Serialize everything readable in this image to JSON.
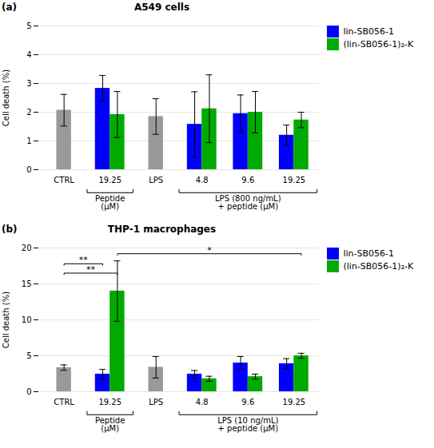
{
  "chart_data": [
    {
      "type": "bar",
      "panel_label": "(a)",
      "title": "A549 cells",
      "ylabel": "Cell death (%)",
      "ylim": [
        0,
        5
      ],
      "yticks": [
        0,
        1,
        2,
        3,
        4,
        5
      ],
      "grid": true,
      "legend": "right",
      "categories": [
        "CTRL",
        "19.25",
        "LPS",
        "4.8",
        "9.6",
        "19.25"
      ],
      "series": [
        {
          "color": "#999999",
          "values": [
            2.07,
            null,
            1.85,
            null,
            null,
            null
          ],
          "errors": [
            0.55,
            null,
            0.62,
            null,
            null,
            null
          ]
        },
        {
          "name": "lin-SB056-1",
          "color": "#0000FF",
          "values": [
            null,
            2.83,
            null,
            1.58,
            1.95,
            1.2
          ],
          "errors": [
            null,
            0.45,
            null,
            1.13,
            0.65,
            0.35
          ]
        },
        {
          "name": "(lin-SB056-1)₂-K",
          "color": "#00AA00",
          "values": [
            null,
            1.92,
            null,
            2.12,
            2.0,
            1.73
          ],
          "errors": [
            null,
            0.8,
            null,
            1.18,
            0.72,
            0.27
          ]
        }
      ],
      "brackets": [
        {
          "label": "Peptide\n(μM)",
          "categories": [
            1,
            1
          ]
        },
        {
          "label": "LPS (800 ng/mL)\n+ peptide (μM)",
          "categories": [
            3,
            5
          ]
        }
      ],
      "annotations": []
    },
    {
      "type": "bar",
      "panel_label": "(b)",
      "title": "THP-1 macrophages",
      "ylabel": "Cell death (%)",
      "ylim": [
        0,
        20
      ],
      "yticks": [
        0,
        5,
        10,
        15,
        20
      ],
      "grid": true,
      "legend": "right",
      "categories": [
        "CTRL",
        "19.25",
        "LPS",
        "4.8",
        "9.6",
        "19.25"
      ],
      "series": [
        {
          "color": "#999999",
          "values": [
            3.35,
            null,
            3.4,
            null,
            null,
            null
          ],
          "errors": [
            0.38,
            null,
            1.5,
            null,
            null,
            null
          ]
        },
        {
          "name": "lin-SB056-1",
          "color": "#0000FF",
          "values": [
            null,
            2.45,
            null,
            2.45,
            4.0,
            3.9
          ],
          "errors": [
            null,
            0.65,
            null,
            0.5,
            0.9,
            0.7
          ]
        },
        {
          "name": "(lin-SB056-1)₂-K",
          "color": "#00AA00",
          "values": [
            null,
            14.0,
            null,
            1.8,
            2.1,
            5.0
          ],
          "errors": [
            null,
            4.2,
            null,
            0.35,
            0.35,
            0.35
          ]
        }
      ],
      "brackets": [
        {
          "label": "Peptide\n(μM)",
          "categories": [
            1,
            1
          ]
        },
        {
          "label": "LPS (10 ng/mL)\n+ peptide (μM)",
          "categories": [
            3,
            5
          ]
        }
      ],
      "annotations": [
        {
          "text": "**",
          "y": 17.8,
          "from": {
            "category": 0,
            "series": 0
          },
          "to": {
            "category": 1,
            "series": 1
          }
        },
        {
          "text": "**",
          "y": 16.5,
          "from": {
            "category": 0,
            "series": 0
          },
          "to": {
            "category": 1,
            "series": 2
          }
        },
        {
          "text": "*",
          "y": 19.2,
          "from": {
            "category": 1,
            "series": 2
          },
          "to": {
            "category": 5,
            "series": 2
          }
        }
      ]
    }
  ]
}
